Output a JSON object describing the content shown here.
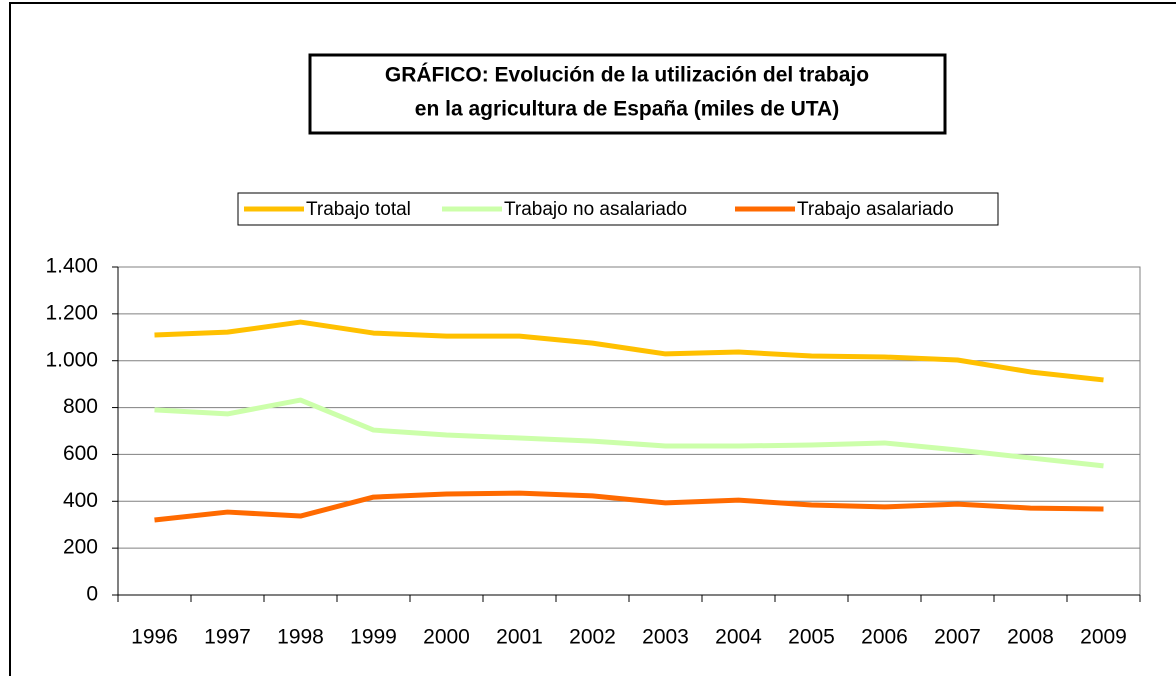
{
  "chart_data": {
    "type": "line",
    "title": [
      "GRÁFICO: Evolución de la utilización del trabajo",
      "en la agricultura de España (miles de UTA)"
    ],
    "categories": [
      "1996",
      "1997",
      "1998",
      "1999",
      "2000",
      "2001",
      "2002",
      "2003",
      "2004",
      "2005",
      "2006",
      "2007",
      "2008",
      "2009"
    ],
    "series": [
      {
        "name": "Trabajo total",
        "color": "#ffc000",
        "values": [
          1110,
          1122,
          1165,
          1118,
          1105,
          1105,
          1075,
          1029,
          1037,
          1020,
          1016,
          1003,
          952,
          918
        ]
      },
      {
        "name": "Trabajo no asalariado",
        "color": "#ccffaa",
        "values": [
          790,
          773,
          832,
          704,
          683,
          670,
          657,
          636,
          636,
          640,
          649,
          619,
          585,
          551
        ]
      },
      {
        "name": "Trabajo asalariado",
        "color": "#ff6a00",
        "values": [
          320,
          354,
          337,
          418,
          431,
          435,
          423,
          393,
          405,
          384,
          376,
          388,
          371,
          367
        ]
      }
    ],
    "ylim": [
      0,
      1400
    ],
    "yticks": [
      0,
      200,
      400,
      600,
      800,
      {
        "value": 1000,
        "label": "1.000"
      },
      {
        "value": 1200,
        "label": "1.200"
      },
      {
        "value": 1400,
        "label": "1.400"
      }
    ],
    "grid": true,
    "legend": "top"
  }
}
